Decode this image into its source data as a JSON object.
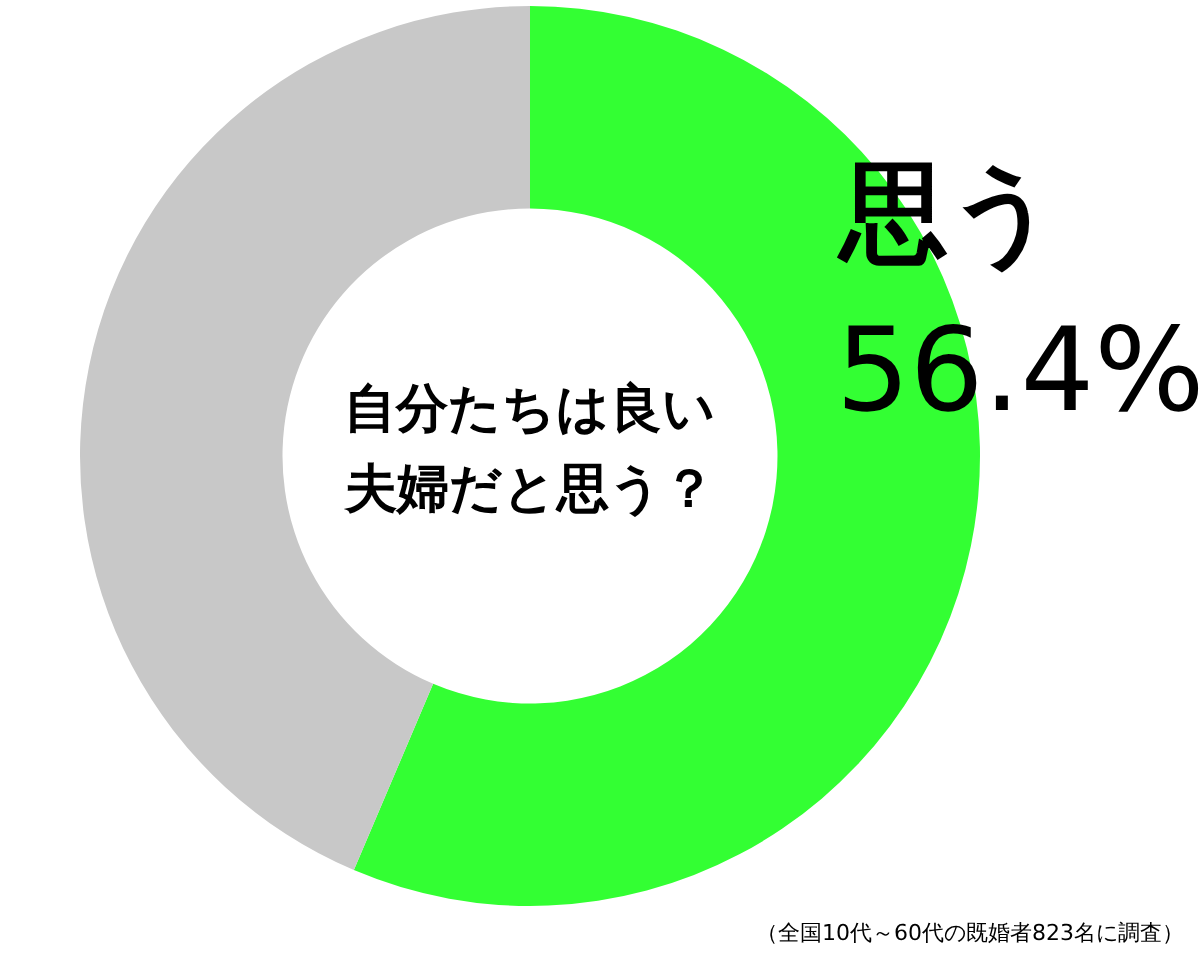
{
  "chart_data": {
    "type": "donut",
    "title": "自分たちは良い夫婦だと思う？",
    "categories": [
      "思う",
      null
    ],
    "values": [
      56.4,
      43.6
    ],
    "colors": [
      "#33ff33",
      "#c8c8c8"
    ],
    "value_labels": [
      "56.4%",
      null
    ],
    "legend": false,
    "annotations": [
      "（全国10代～60代の既婚者823名に調査）"
    ]
  }
}
